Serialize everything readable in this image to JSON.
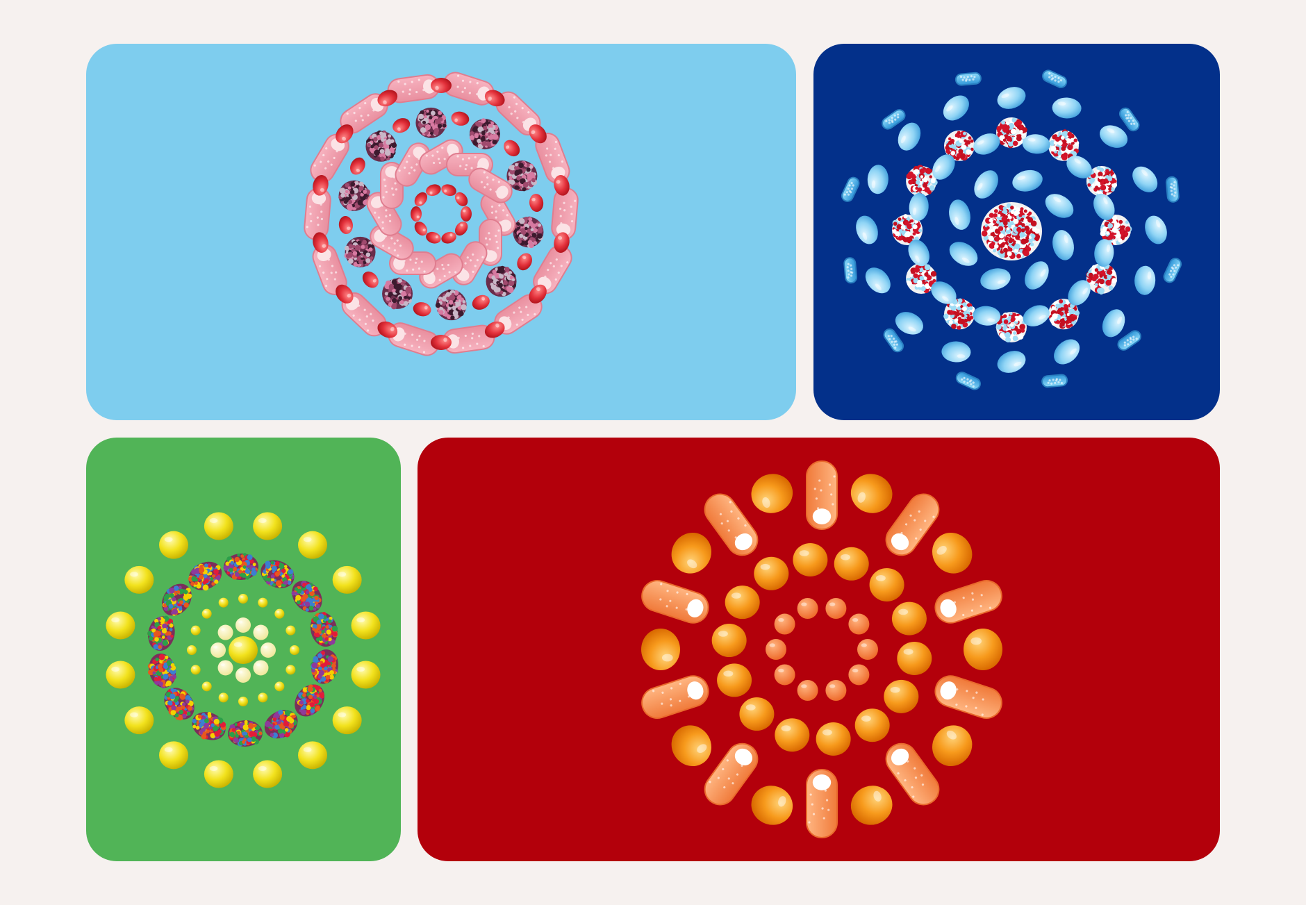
{
  "page": {
    "background": "#f6f1ef"
  },
  "tiles": [
    {
      "id": "pink-swirl",
      "background": "#7ecdee",
      "candies": [
        "sour-pink-stick",
        "red-jelly-bean",
        "purple-sprinkle-ball"
      ]
    },
    {
      "id": "blue-swirl",
      "background": "#03308a",
      "candies": [
        "blue-tablet",
        "blue-twist-tube",
        "red-white-blue-sprinkle-ball"
      ]
    },
    {
      "id": "yellow-burst",
      "background": "#51b457",
      "candies": [
        "yellow-gumball",
        "rainbow-nonpareil-cluster",
        "pale-yellow-mint"
      ]
    },
    {
      "id": "orange-sunburst",
      "background": "#b3000b",
      "candies": [
        "orange-gumball",
        "sour-orange-stick",
        "sugared-orange-ball"
      ]
    }
  ]
}
